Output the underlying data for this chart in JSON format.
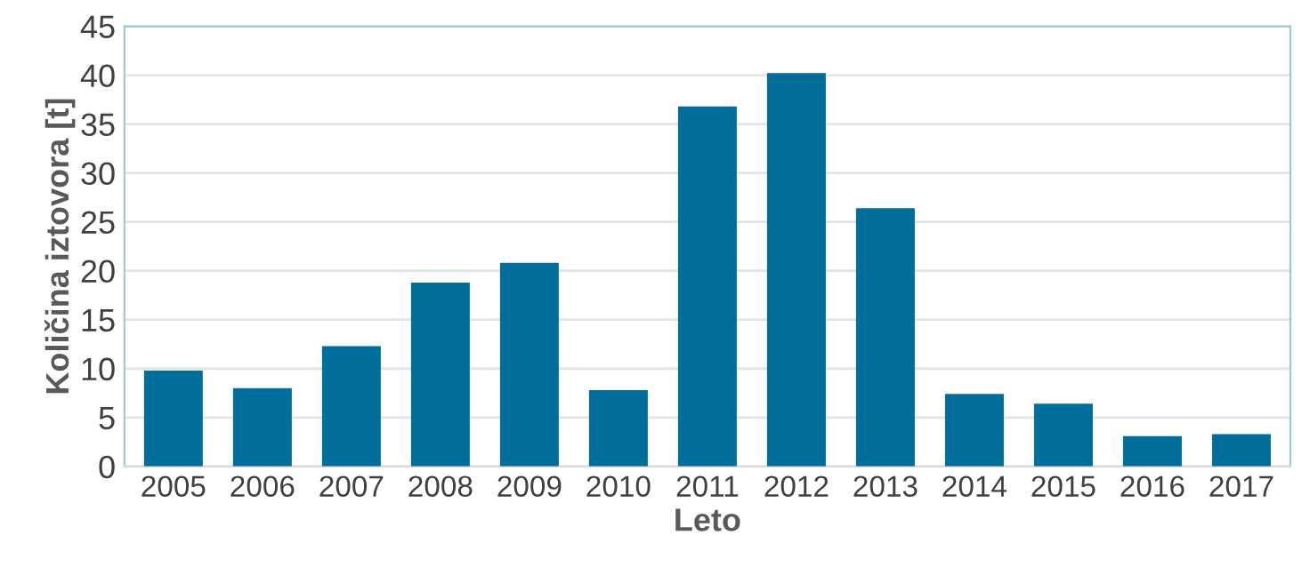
{
  "chart_data": {
    "type": "bar",
    "xlabel": "Leto",
    "ylabel": "Količina iztovora [t]",
    "categories": [
      "2005",
      "2006",
      "2007",
      "2008",
      "2009",
      "2010",
      "2011",
      "2012",
      "2013",
      "2014",
      "2015",
      "2016",
      "2017"
    ],
    "values": [
      9.8,
      8.0,
      12.3,
      18.8,
      20.8,
      7.8,
      36.8,
      40.2,
      26.4,
      7.4,
      6.4,
      3.1,
      3.3
    ],
    "color": "#006d9a",
    "ylim": [
      0,
      45
    ],
    "yticks": [
      0,
      5,
      10,
      15,
      20,
      25,
      30,
      35,
      40,
      45
    ],
    "grid": "y",
    "legend": false
  }
}
